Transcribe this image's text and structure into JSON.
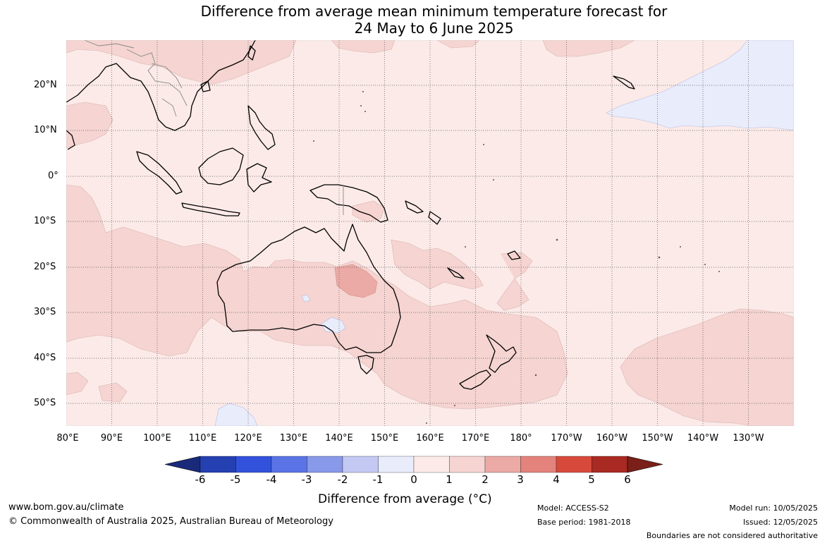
{
  "title": {
    "line1": "Difference from average mean minimum temperature forecast for",
    "line2": "24 May to 6 June 2025"
  },
  "map": {
    "lat_labels": [
      "20°N",
      "10°N",
      "0°",
      "10°S",
      "20°S",
      "30°S",
      "40°S",
      "50°S"
    ],
    "lon_labels": [
      "80°E",
      "90°E",
      "100°E",
      "110°E",
      "120°E",
      "130°E",
      "140°E",
      "150°E",
      "160°E",
      "170°E",
      "180°",
      "170°W",
      "160°W",
      "150°W",
      "140°W",
      "130°W"
    ],
    "colors": {
      "ocean_base": "#fbeae8",
      "band_1_2": "#f5d4d1",
      "band_2_3": "#ebaaa5",
      "band_0_m1": "#e9ecfb",
      "land_outline": "#000000",
      "border": "#888888",
      "grid": "#555555"
    }
  },
  "colorbar": {
    "ticks": [
      "-6",
      "-5",
      "-4",
      "-3",
      "-2",
      "-1",
      "0",
      "1",
      "2",
      "3",
      "4",
      "5",
      "6"
    ],
    "colors": [
      "#1a2a7a",
      "#2540b0",
      "#3352dc",
      "#5a74e6",
      "#8899ea",
      "#c3c9f3",
      "#e9ecfb",
      "#fbeae8",
      "#f5d4d1",
      "#ebaaa5",
      "#e3837b",
      "#d74a3b",
      "#a82a22",
      "#7a2018"
    ],
    "label": "Difference from average (°C)"
  },
  "footer": {
    "website": "www.bom.gov.au/climate",
    "copyright": "© Commonwealth of Australia 2025, Australian Bureau of Meteorology",
    "model": "Model: ACCESS-S2",
    "base_period": "Base period: 1981-2018",
    "model_run": "Model run: 10/05/2025",
    "issued": "Issued: 12/05/2025",
    "disclaimer": "Boundaries are not considered authoritative"
  }
}
